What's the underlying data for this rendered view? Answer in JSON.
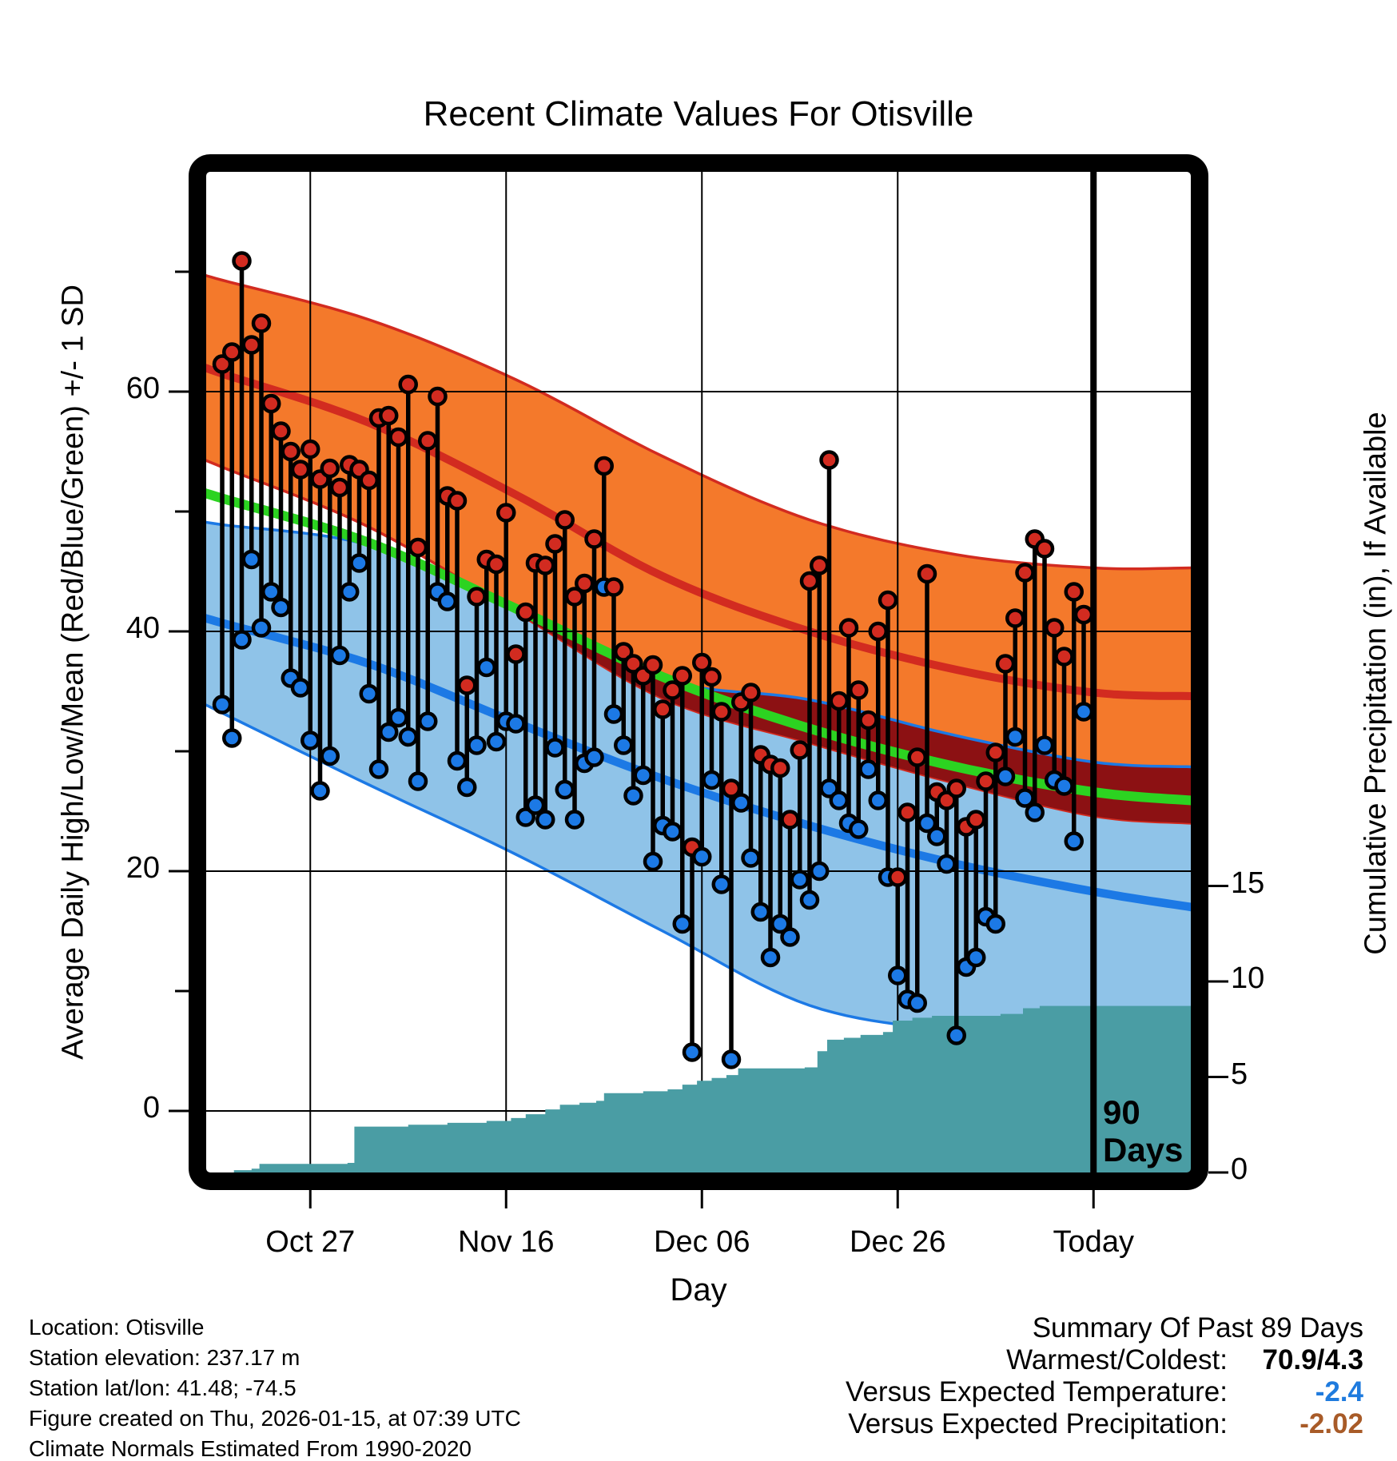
{
  "title": "Recent Climate Values For Otisville",
  "axes": {
    "left_label": "Average Daily High/Low/Mean (Red/Blue/Green) +/- 1 SD",
    "right_label": "Cumulative Precipitation (in), If Available",
    "x_label": "Day"
  },
  "ninety_marker": {
    "line1": "90",
    "line2": "Days"
  },
  "footer": {
    "lines": [
      "Location: Otisville",
      "Station elevation: 237.17 m",
      "Station lat/lon: 41.48; -74.5",
      "Figure created on Thu, 2026-01-15, at 07:39 UTC",
      "Climate Normals Estimated From 1990-2020"
    ]
  },
  "summary": {
    "heading": "Summary Of Past 89 Days",
    "rows": [
      {
        "label": "Warmest/Coldest:",
        "value": "70.9/4.3",
        "value_color": "#000000"
      },
      {
        "label": "Versus Expected Temperature:",
        "value": "-2.4",
        "value_color": "#1F7BDE"
      },
      {
        "label": "Versus Expected Precipitation:",
        "value": "-2.02",
        "value_color": "#A85B28"
      }
    ]
  },
  "colors": {
    "high_band": "#F4792B",
    "red_line": "#D22B20",
    "overlap_band": "#8C1113",
    "mean_line_green": "#2CD321",
    "low_band": "#8FC3E8",
    "blue_line": "#1C79E5",
    "precip_fill": "#4A9DA4",
    "high_dot": "#D22B20",
    "low_dot": "#1C79E5",
    "stem": "#000000",
    "grid": "#000000"
  },
  "chart_data": {
    "type": "line",
    "num_days": 89,
    "today_day_index": 89,
    "temp_axis": {
      "major_ticks": [
        0,
        20,
        40,
        60
      ],
      "minor_ticks": [
        10,
        30,
        50,
        70
      ],
      "range": [
        -5,
        78
      ]
    },
    "precip_axis": {
      "ticks": [
        0,
        5,
        10,
        15
      ],
      "range": [
        0,
        19
      ]
    },
    "x_axis": {
      "ticks": [
        {
          "day": 9,
          "label": "Oct 27"
        },
        {
          "day": 29,
          "label": "Nov 16"
        },
        {
          "day": 49,
          "label": "Dec 06"
        },
        {
          "day": 69,
          "label": "Dec 26"
        },
        {
          "day": 89,
          "label": "Today"
        }
      ]
    },
    "daily": {
      "highs": [
        62.3,
        63.3,
        70.9,
        63.9,
        65.7,
        59.0,
        56.7,
        55.0,
        53.5,
        55.2,
        52.7,
        53.6,
        52.0,
        53.9,
        53.5,
        52.6,
        57.8,
        58.0,
        56.2,
        60.6,
        47.0,
        55.9,
        59.6,
        51.3,
        50.9,
        35.5,
        42.9,
        46.0,
        45.6,
        49.9,
        38.1,
        41.6,
        45.7,
        45.5,
        47.3,
        49.3,
        42.9,
        44.0,
        47.7,
        53.8,
        43.7,
        38.3,
        37.3,
        36.3,
        37.2,
        33.5,
        35.1,
        36.3,
        22.0,
        37.4,
        36.2,
        33.3,
        26.9,
        34.1,
        34.9,
        29.7,
        28.9,
        28.6,
        24.3,
        30.1,
        44.2,
        45.5,
        54.3,
        34.2,
        40.3,
        35.1,
        32.6,
        40.0,
        42.6,
        19.5,
        24.9,
        29.5,
        44.8,
        26.6,
        25.9,
        26.9,
        23.7,
        24.3,
        27.5,
        29.9,
        37.3,
        41.1,
        44.9,
        47.7,
        46.9,
        40.3,
        37.9,
        43.3,
        41.4
      ],
      "lows": [
        33.9,
        31.1,
        39.3,
        46.0,
        40.3,
        43.3,
        42.0,
        36.1,
        35.3,
        30.9,
        26.7,
        29.6,
        38.0,
        43.3,
        45.7,
        34.8,
        28.5,
        31.6,
        32.8,
        31.2,
        27.5,
        32.5,
        43.3,
        42.5,
        29.2,
        27.0,
        30.5,
        37.0,
        30.8,
        32.5,
        32.3,
        24.5,
        25.5,
        24.3,
        30.3,
        26.8,
        24.3,
        29.0,
        29.5,
        43.7,
        33.1,
        30.5,
        26.3,
        28.0,
        20.8,
        23.8,
        23.3,
        15.6,
        4.9,
        21.2,
        27.6,
        18.9,
        4.3,
        25.7,
        21.1,
        16.6,
        12.8,
        15.6,
        14.5,
        19.3,
        17.6,
        20.0,
        26.9,
        25.9,
        24.0,
        23.5,
        28.5,
        25.9,
        19.5,
        11.3,
        9.3,
        9.0,
        24.0,
        22.9,
        20.6,
        6.3,
        12.0,
        12.8,
        16.2,
        15.6,
        27.9,
        31.2,
        26.1,
        24.9,
        30.5,
        27.6,
        27.1,
        22.5,
        33.3
      ],
      "warmest": 70.9,
      "coldest": 4.3
    },
    "climatology": {
      "control_days": [
        -2,
        0,
        15,
        30,
        45,
        60,
        75,
        89,
        99
      ],
      "high_plus_sd": [
        69.8,
        69.3,
        66.0,
        61.0,
        54.6,
        49.3,
        46.4,
        45.3,
        45.3
      ],
      "high_mean": [
        62.1,
        61.5,
        57.4,
        51.4,
        44.6,
        40.0,
        36.8,
        34.9,
        34.6
      ],
      "high_minus_sd": [
        54.4,
        53.7,
        48.7,
        41.6,
        34.4,
        30.7,
        27.3,
        24.6,
        24.0
      ],
      "mean": [
        51.6,
        51.1,
        47.4,
        41.9,
        36.2,
        31.9,
        28.7,
        26.6,
        25.9
      ],
      "low_plus_sd": [
        49.2,
        48.9,
        47.2,
        42.0,
        36.0,
        34.3,
        31.3,
        29.1,
        28.7
      ],
      "low_mean": [
        41.2,
        40.7,
        37.3,
        32.4,
        27.7,
        23.8,
        20.6,
        18.3,
        17.0
      ],
      "low_minus_sd": [
        34.0,
        33.2,
        27.2,
        21.4,
        15.0,
        8.8,
        6.6,
        5.4,
        5.2
      ]
    },
    "precip_cumulative_steps": [
      [
        1.2,
        0.12
      ],
      [
        3.0,
        0.2
      ],
      [
        3.8,
        0.45
      ],
      [
        12.8,
        0.5
      ],
      [
        13.5,
        2.4
      ],
      [
        19,
        2.5
      ],
      [
        23,
        2.6
      ],
      [
        27,
        2.7
      ],
      [
        29.5,
        2.85
      ],
      [
        31,
        3.05
      ],
      [
        33,
        3.3
      ],
      [
        34.5,
        3.55
      ],
      [
        36.5,
        3.65
      ],
      [
        38.2,
        3.75
      ],
      [
        39,
        4.15
      ],
      [
        43,
        4.25
      ],
      [
        45.5,
        4.35
      ],
      [
        47,
        4.6
      ],
      [
        48.5,
        4.8
      ],
      [
        50,
        4.95
      ],
      [
        51.5,
        5.1
      ],
      [
        52.7,
        5.45
      ],
      [
        59.5,
        5.5
      ],
      [
        60.8,
        6.35
      ],
      [
        61.8,
        6.95
      ],
      [
        63.5,
        7.05
      ],
      [
        65.2,
        7.2
      ],
      [
        67.5,
        7.35
      ],
      [
        68.5,
        7.95
      ],
      [
        70.5,
        8.1
      ],
      [
        72.5,
        8.2
      ],
      [
        79.5,
        8.3
      ],
      [
        81.8,
        8.6
      ],
      [
        83.5,
        8.72
      ],
      [
        99,
        8.72
      ]
    ]
  }
}
